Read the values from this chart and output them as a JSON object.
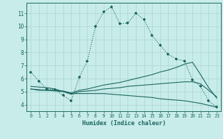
{
  "xlabel": "Humidex (Indice chaleur)",
  "bg_color": "#c8ece9",
  "grid_color": "#b0d8d4",
  "line_color": "#1a6660",
  "xlim": [
    -0.5,
    23.5
  ],
  "ylim": [
    3.5,
    11.8
  ],
  "xticks": [
    0,
    1,
    2,
    3,
    4,
    5,
    6,
    7,
    8,
    9,
    10,
    11,
    12,
    13,
    14,
    15,
    16,
    17,
    18,
    19,
    20,
    21,
    22,
    23
  ],
  "yticks": [
    4,
    5,
    6,
    7,
    8,
    9,
    10,
    11
  ],
  "curve1_x": [
    0,
    1,
    2,
    3,
    4,
    5,
    6,
    7,
    8,
    9,
    10,
    11,
    12,
    13,
    14,
    15,
    16,
    17,
    18,
    19,
    20,
    21,
    22,
    23
  ],
  "curve1_y": [
    6.5,
    5.8,
    5.2,
    5.15,
    4.7,
    4.3,
    6.1,
    7.35,
    10.0,
    11.1,
    11.5,
    10.2,
    10.25,
    11.0,
    10.5,
    9.3,
    8.55,
    7.85,
    7.5,
    7.35,
    5.9,
    5.4,
    4.3,
    3.8
  ],
  "curve2_x": [
    0,
    1,
    2,
    3,
    4,
    5,
    6,
    7,
    8,
    9,
    10,
    11,
    12,
    13,
    14,
    15,
    16,
    17,
    18,
    19,
    20,
    21,
    22,
    23
  ],
  "curve2_y": [
    5.2,
    5.15,
    5.1,
    5.1,
    5.05,
    4.9,
    5.1,
    5.2,
    5.35,
    5.5,
    5.6,
    5.7,
    5.85,
    6.0,
    6.15,
    6.3,
    6.5,
    6.65,
    6.85,
    7.1,
    7.25,
    6.3,
    5.3,
    4.5
  ],
  "curve3_x": [
    0,
    1,
    2,
    3,
    4,
    5,
    6,
    7,
    8,
    9,
    10,
    11,
    12,
    13,
    14,
    15,
    16,
    17,
    18,
    19,
    20,
    21,
    22,
    23
  ],
  "curve3_y": [
    5.2,
    5.1,
    5.1,
    5.05,
    5.0,
    4.8,
    5.0,
    5.05,
    5.1,
    5.2,
    5.25,
    5.3,
    5.4,
    5.45,
    5.5,
    5.55,
    5.6,
    5.65,
    5.7,
    5.75,
    5.75,
    5.6,
    5.1,
    4.6
  ],
  "curve4_x": [
    0,
    1,
    2,
    3,
    4,
    5,
    6,
    7,
    8,
    9,
    10,
    11,
    12,
    13,
    14,
    15,
    16,
    17,
    18,
    19,
    20,
    21,
    22,
    23
  ],
  "curve4_y": [
    5.4,
    5.35,
    5.3,
    5.2,
    5.0,
    4.85,
    4.85,
    4.85,
    4.85,
    4.85,
    4.8,
    4.75,
    4.7,
    4.65,
    4.6,
    4.55,
    4.45,
    4.4,
    4.35,
    4.3,
    4.2,
    4.1,
    3.95,
    3.8
  ]
}
